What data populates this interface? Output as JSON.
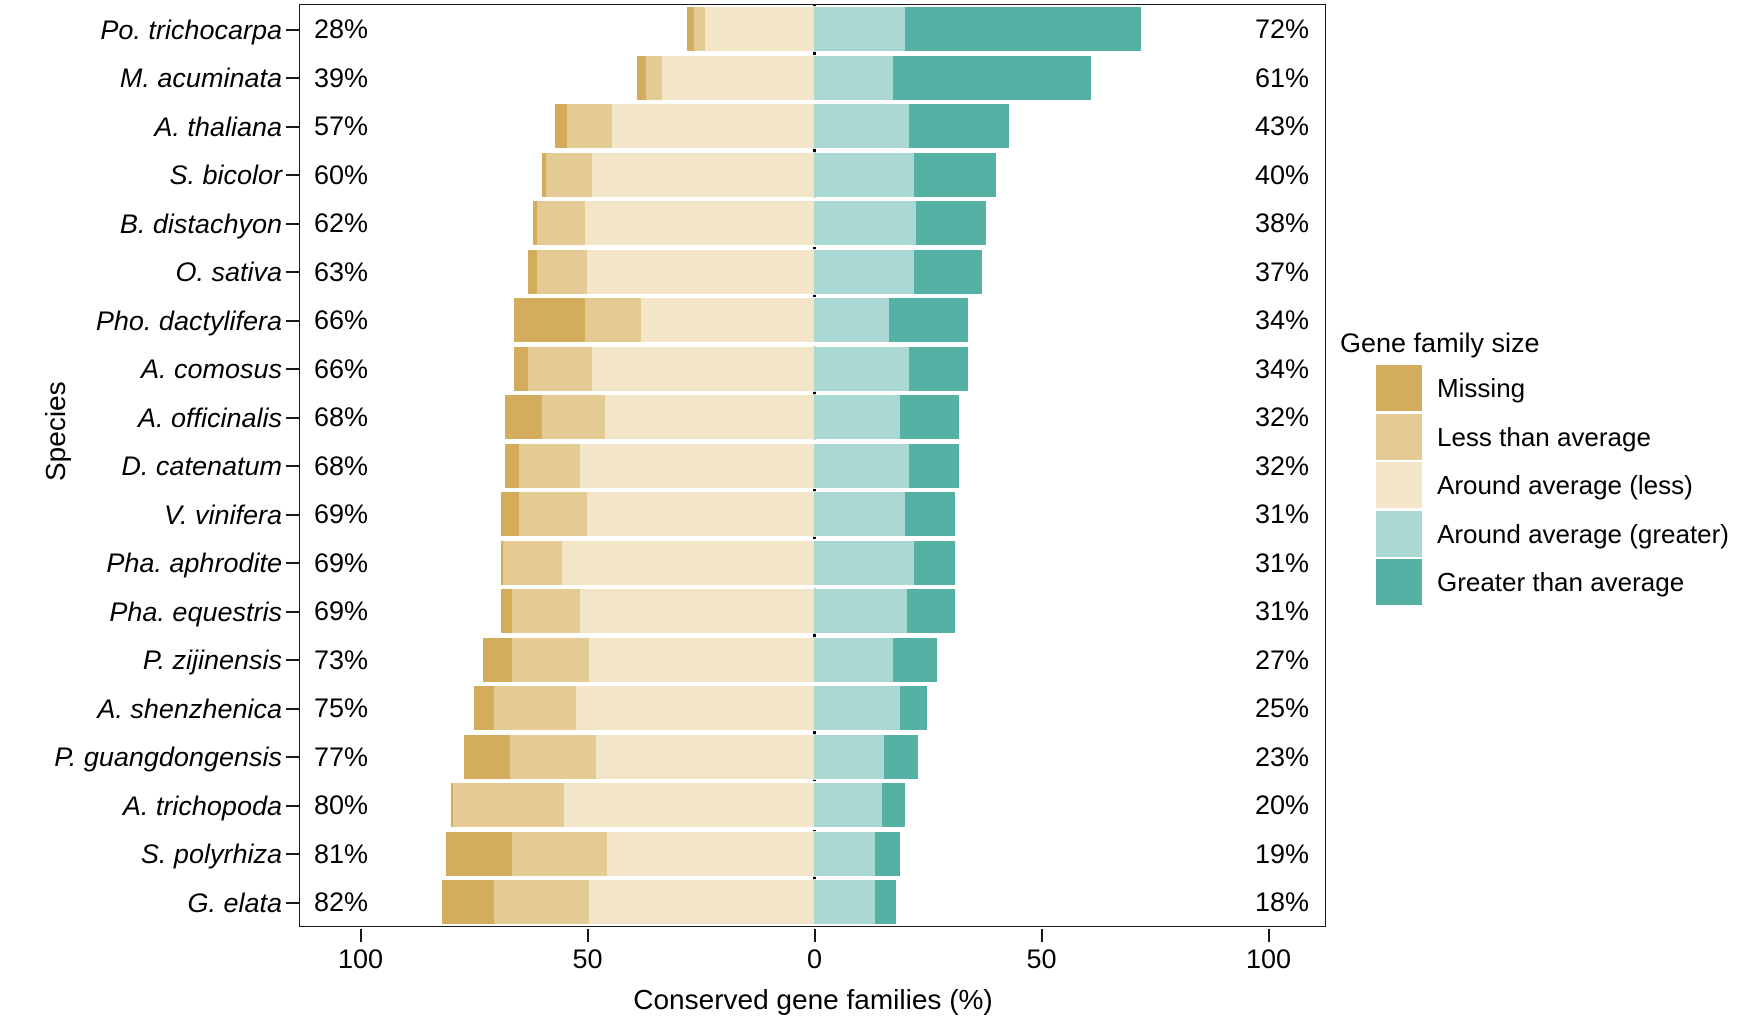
{
  "figure": {
    "y_axis_title": "Species",
    "x_axis_title": "Conserved gene families (%)",
    "legend": {
      "title": "Gene family size",
      "items": [
        {
          "name": "missing",
          "label": "Missing",
          "color": "#D3AC5C"
        },
        {
          "name": "less-than-average",
          "label": "Less than average",
          "color": "#E4CB93"
        },
        {
          "name": "around-average-less",
          "label": "Around average (less)",
          "color": "#F3E5C7"
        },
        {
          "name": "around-average-greater",
          "label": "Around average (greater)",
          "color": "#ABD8D2"
        },
        {
          "name": "greater-than-average",
          "label": "Greater than average",
          "color": "#55B1A4"
        }
      ]
    },
    "colors": {
      "missing": "#D3AC5C",
      "less_than_average": "#E4CB93",
      "around_average_less": "#F3E5C7",
      "around_average_greater": "#ABD8D2",
      "greater_than_average": "#55B1A4",
      "axis": "#1a1a1a",
      "text": "#000000"
    }
  },
  "chart_data": {
    "type": "bar",
    "variant": "diverging-stacked-horizontal",
    "title": "",
    "xlabel": "Conserved gene families (%)",
    "ylabel": "Species",
    "x_tick_values": [
      -100,
      -50,
      0,
      50,
      100
    ],
    "x_tick_labels": [
      "100",
      "50",
      "0",
      "50",
      "100"
    ],
    "xlim": [
      -113.5,
      113
    ],
    "grid": false,
    "legend_position": "right",
    "series_order_left_from_zero": [
      "around_average_less",
      "less_than_average",
      "missing"
    ],
    "series_order_right_from_zero": [
      "around_average_greater",
      "greater_than_average"
    ],
    "rows": [
      {
        "species": "Po. trichocarpa",
        "left_label": "28%",
        "right_label": "72%",
        "left_total": 28,
        "right_total": 72,
        "missing": 1.5,
        "less_than_average": 2.5,
        "around_average_less": 24,
        "around_average_greater": 20,
        "greater_than_average": 52
      },
      {
        "species": "M. acuminata",
        "left_label": "39%",
        "right_label": "61%",
        "left_total": 39,
        "right_total": 61,
        "missing": 2,
        "less_than_average": 3.5,
        "around_average_less": 33.5,
        "around_average_greater": 17.5,
        "greater_than_average": 43.5
      },
      {
        "species": "A. thaliana",
        "left_label": "57%",
        "right_label": "43%",
        "left_total": 57,
        "right_total": 43,
        "missing": 2.5,
        "less_than_average": 10,
        "around_average_less": 44.5,
        "around_average_greater": 21,
        "greater_than_average": 22
      },
      {
        "species": "S. bicolor",
        "left_label": "60%",
        "right_label": "40%",
        "left_total": 60,
        "right_total": 40,
        "missing": 1,
        "less_than_average": 10,
        "around_average_less": 49,
        "around_average_greater": 22,
        "greater_than_average": 18
      },
      {
        "species": "B. distachyon",
        "left_label": "62%",
        "right_label": "38%",
        "left_total": 62,
        "right_total": 38,
        "missing": 1,
        "less_than_average": 10.5,
        "around_average_less": 50.5,
        "around_average_greater": 22.5,
        "greater_than_average": 15.5
      },
      {
        "species": "O. sativa",
        "left_label": "63%",
        "right_label": "37%",
        "left_total": 63,
        "right_total": 37,
        "missing": 2,
        "less_than_average": 11,
        "around_average_less": 50,
        "around_average_greater": 22,
        "greater_than_average": 15
      },
      {
        "species": "Pho. dactylifera",
        "left_label": "66%",
        "right_label": "34%",
        "left_total": 66,
        "right_total": 34,
        "missing": 15.5,
        "less_than_average": 12.5,
        "around_average_less": 38,
        "around_average_greater": 16.5,
        "greater_than_average": 17.5
      },
      {
        "species": "A. comosus",
        "left_label": "66%",
        "right_label": "34%",
        "left_total": 66,
        "right_total": 34,
        "missing": 3,
        "less_than_average": 14,
        "around_average_less": 49,
        "around_average_greater": 21,
        "greater_than_average": 13
      },
      {
        "species": "A. officinalis",
        "left_label": "68%",
        "right_label": "32%",
        "left_total": 68,
        "right_total": 32,
        "missing": 8,
        "less_than_average": 14,
        "around_average_less": 46,
        "around_average_greater": 19,
        "greater_than_average": 13
      },
      {
        "species": "D. catenatum",
        "left_label": "68%",
        "right_label": "32%",
        "left_total": 68,
        "right_total": 32,
        "missing": 3,
        "less_than_average": 13.5,
        "around_average_less": 51.5,
        "around_average_greater": 21,
        "greater_than_average": 11
      },
      {
        "species": "V. vinifera",
        "left_label": "69%",
        "right_label": "31%",
        "left_total": 69,
        "right_total": 31,
        "missing": 4,
        "less_than_average": 15,
        "around_average_less": 50,
        "around_average_greater": 20,
        "greater_than_average": 11
      },
      {
        "species": "Pha. aphrodite",
        "left_label": "69%",
        "right_label": "31%",
        "left_total": 69,
        "right_total": 31,
        "missing": 0.5,
        "less_than_average": 13,
        "around_average_less": 55.5,
        "around_average_greater": 22,
        "greater_than_average": 9
      },
      {
        "species": "Pha. equestris",
        "left_label": "69%",
        "right_label": "31%",
        "left_total": 69,
        "right_total": 31,
        "missing": 2.5,
        "less_than_average": 15,
        "around_average_less": 51.5,
        "around_average_greater": 20.5,
        "greater_than_average": 10.5
      },
      {
        "species": "P. zijinensis",
        "left_label": "73%",
        "right_label": "27%",
        "left_total": 73,
        "right_total": 27,
        "missing": 6.5,
        "less_than_average": 17,
        "around_average_less": 49.5,
        "around_average_greater": 17.5,
        "greater_than_average": 9.5
      },
      {
        "species": "A. shenzhenica",
        "left_label": "75%",
        "right_label": "25%",
        "left_total": 75,
        "right_total": 25,
        "missing": 4.5,
        "less_than_average": 18,
        "around_average_less": 52.5,
        "around_average_greater": 19,
        "greater_than_average": 6
      },
      {
        "species": "P. guangdongensis",
        "left_label": "77%",
        "right_label": "23%",
        "left_total": 77,
        "right_total": 23,
        "missing": 10,
        "less_than_average": 19,
        "around_average_less": 48,
        "around_average_greater": 15.5,
        "greater_than_average": 7.5
      },
      {
        "species": "A. trichopoda",
        "left_label": "80%",
        "right_label": "20%",
        "left_total": 80,
        "right_total": 20,
        "missing": 0.5,
        "less_than_average": 24.5,
        "around_average_less": 55,
        "around_average_greater": 15,
        "greater_than_average": 5
      },
      {
        "species": "S. polyrhiza",
        "left_label": "81%",
        "right_label": "19%",
        "left_total": 81,
        "right_total": 19,
        "missing": 14.5,
        "less_than_average": 21,
        "around_average_less": 45.5,
        "around_average_greater": 13.5,
        "greater_than_average": 5.5
      },
      {
        "species": "G. elata",
        "left_label": "82%",
        "right_label": "18%",
        "left_total": 82,
        "right_total": 18,
        "missing": 11.5,
        "less_than_average": 21,
        "around_average_less": 49.5,
        "around_average_greater": 13.5,
        "greater_than_average": 4.5
      }
    ]
  }
}
